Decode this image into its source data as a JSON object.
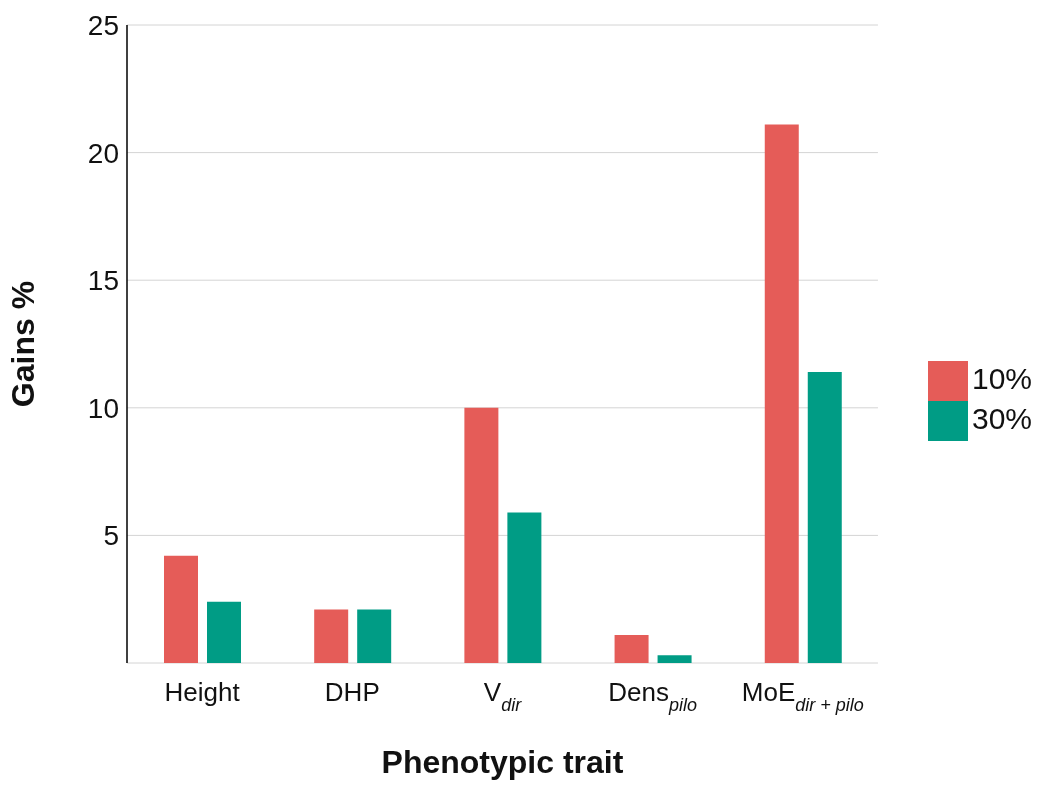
{
  "chart_data": {
    "type": "bar",
    "xlabel": "Phenotypic trait",
    "ylabel": "Gains %",
    "categories": [
      "Height",
      "DHP",
      "V$_{dir}$",
      "Dens$_{pilo}$",
      "MoE$_{dir + pilo}$"
    ],
    "series": [
      {
        "name": "10%",
        "color": "#e55c58",
        "values": [
          4.2,
          2.1,
          10.0,
          1.1,
          21.1
        ]
      },
      {
        "name": "30%",
        "color": "#009c85",
        "values": [
          2.4,
          2.1,
          5.9,
          0.3,
          11.4
        ]
      }
    ],
    "ylim": [
      0,
      25
    ],
    "yticks": [
      {
        "value": 0,
        "label": null
      },
      5,
      10,
      15,
      20,
      25
    ],
    "grid": "y",
    "legend": "right"
  }
}
